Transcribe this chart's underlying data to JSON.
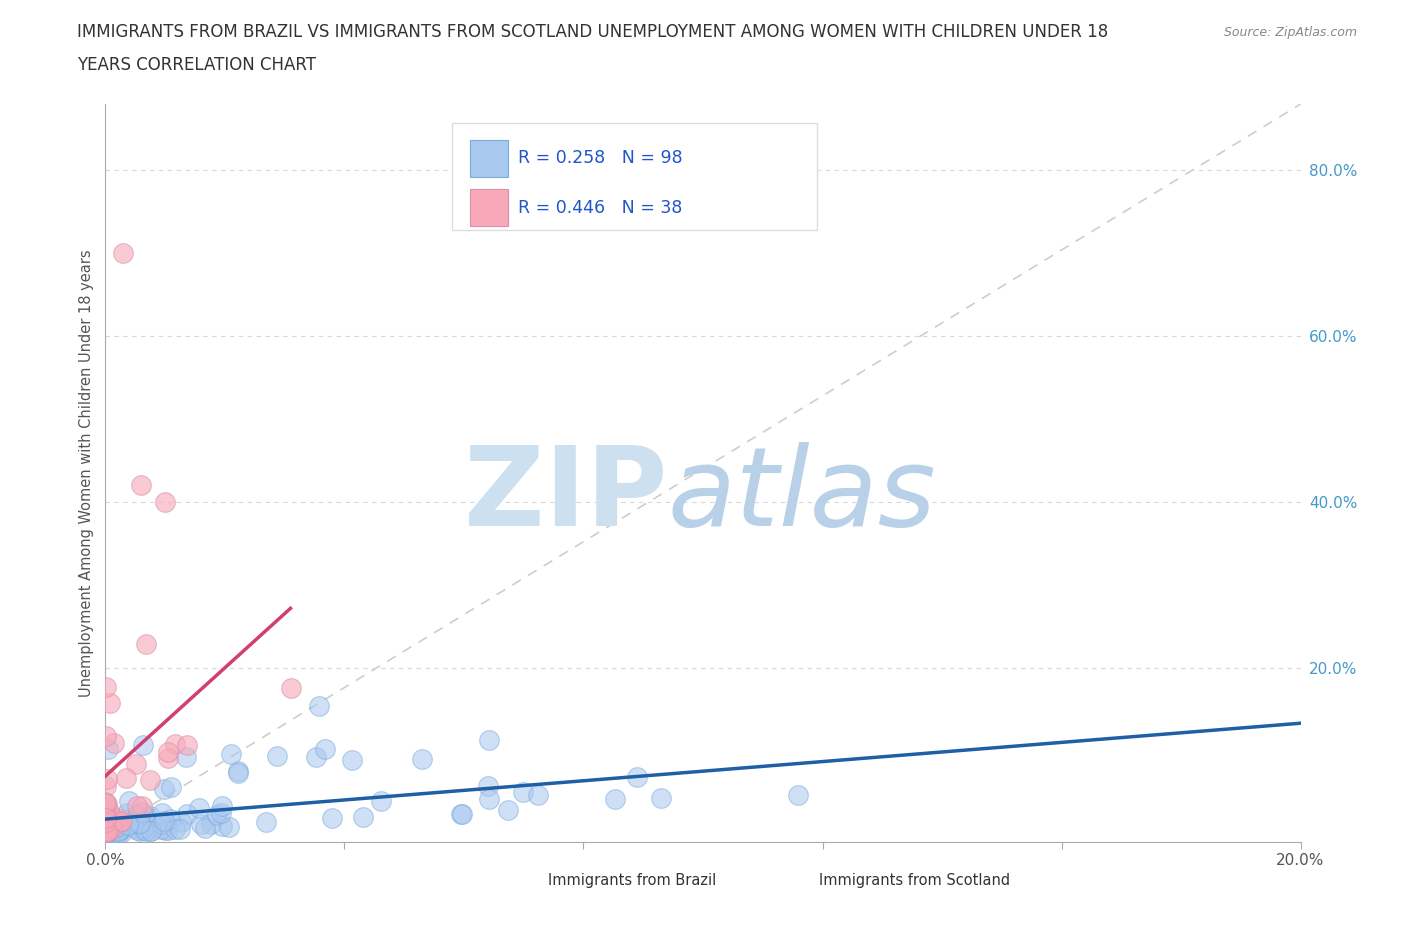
{
  "title_line1": "IMMIGRANTS FROM BRAZIL VS IMMIGRANTS FROM SCOTLAND UNEMPLOYMENT AMONG WOMEN WITH CHILDREN UNDER 18",
  "title_line2": "YEARS CORRELATION CHART",
  "source": "Source: ZipAtlas.com",
  "ylabel": "Unemployment Among Women with Children Under 18 years",
  "xlim": [
    0.0,
    0.2
  ],
  "ylim": [
    -0.01,
    0.88
  ],
  "brazil_R": 0.258,
  "brazil_N": 98,
  "scotland_R": 0.446,
  "scotland_N": 38,
  "brazil_color": "#a8c8f0",
  "brazil_line_color": "#1f5fa6",
  "scotland_color": "#f8a8b8",
  "scotland_line_color": "#d04070",
  "brazil_edge_color": "#7aaad8",
  "scotland_edge_color": "#d890a8",
  "grid_color": "#d8d8d8",
  "diag_color": "#c8c8c8",
  "watermark_zip_color": "#cce0f0",
  "watermark_atlas_color": "#b8d0e8",
  "legend_edge_color": "#dddddd",
  "legend_text_color": "#2255cc",
  "right_tick_color": "#4499cc",
  "axis_color": "#aaaaaa",
  "tick_label_color": "#555555",
  "title_color": "#333333",
  "source_color": "#888888"
}
